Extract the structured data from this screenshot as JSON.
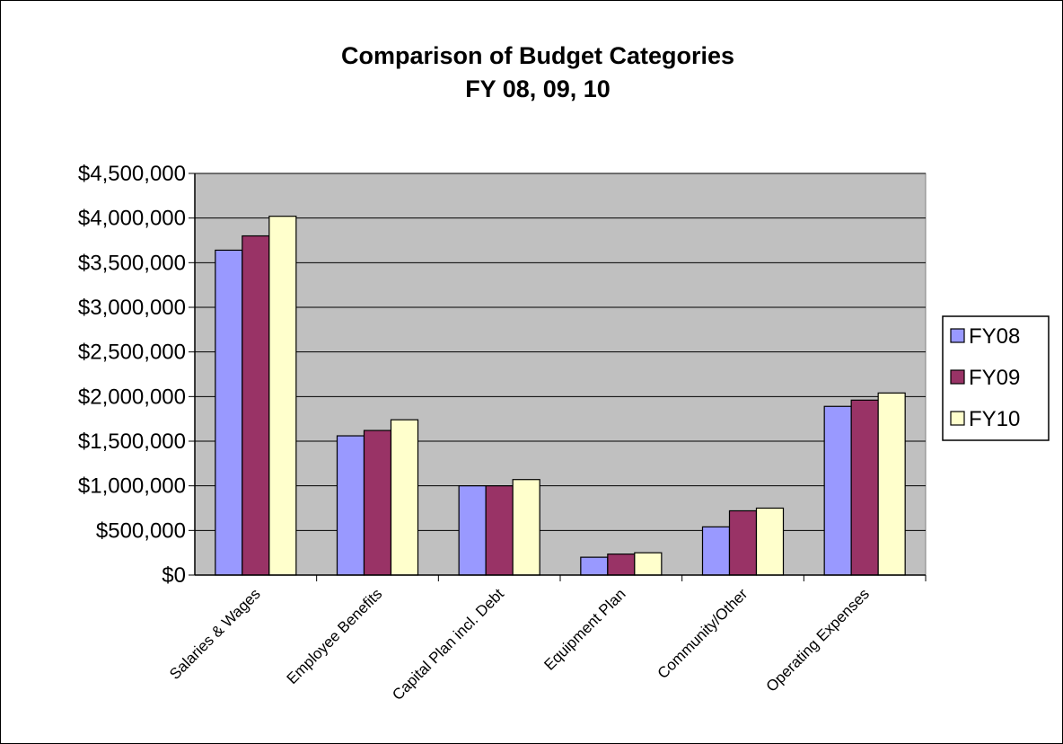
{
  "chart_data": {
    "type": "bar",
    "title": [
      "Comparison of Budget Categories",
      "FY 08, 09, 10"
    ],
    "categories": [
      "Salaries & Wages",
      "Employee Benefits",
      "Capital Plan incl. Debt",
      "Equipment Plan",
      "Community/Other",
      "Operating Expenses"
    ],
    "series": [
      {
        "name": "FY08",
        "color": "#9999ff",
        "values": [
          3640000,
          1560000,
          1000000,
          200000,
          540000,
          1890000
        ]
      },
      {
        "name": "FY09",
        "color": "#993366",
        "values": [
          3800000,
          1620000,
          1000000,
          235000,
          720000,
          1960000
        ]
      },
      {
        "name": "FY10",
        "color": "#ffffcc",
        "values": [
          4020000,
          1740000,
          1070000,
          250000,
          750000,
          2040000
        ]
      }
    ],
    "ylim": [
      0,
      4500000
    ],
    "y_ticks": [
      {
        "value": 0,
        "label": "$0"
      },
      {
        "value": 500000,
        "label": "$500,000"
      },
      {
        "value": 1000000,
        "label": "$1,000,000"
      },
      {
        "value": 1500000,
        "label": "$1,500,000"
      },
      {
        "value": 2000000,
        "label": "$2,000,000"
      },
      {
        "value": 2500000,
        "label": "$2,500,000"
      },
      {
        "value": 3000000,
        "label": "$3,000,000"
      },
      {
        "value": 3500000,
        "label": "$3,500,000"
      },
      {
        "value": 4000000,
        "label": "$4,000,000"
      },
      {
        "value": 4500000,
        "label": "$4,500,000"
      }
    ],
    "grid": true,
    "legend_position": "right",
    "plot_background": "#c0c0c0"
  }
}
